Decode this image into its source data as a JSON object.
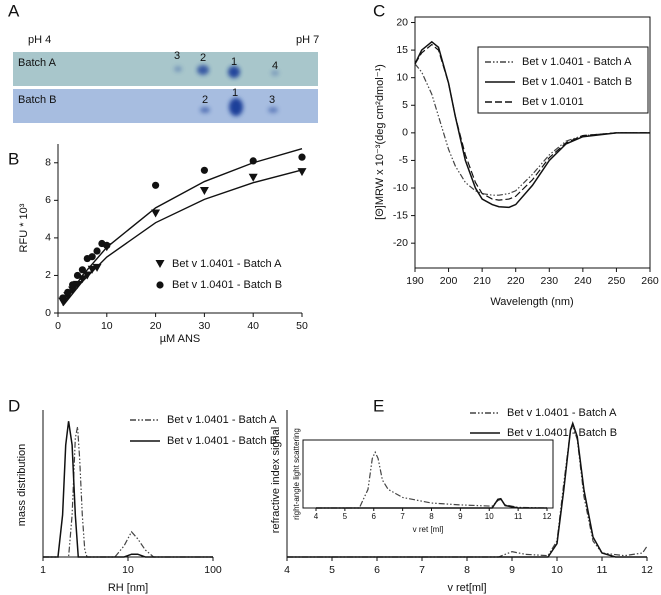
{
  "gel": {
    "panel": "A",
    "left_label": "pH 4",
    "right_label": "pH 7",
    "lanes": [
      {
        "name": "Batch A",
        "spots": [
          "3",
          "2",
          "1",
          "4"
        ]
      },
      {
        "name": "Batch B",
        "spots": [
          "2",
          "1",
          "3"
        ]
      }
    ]
  },
  "chart_data": [
    {
      "type": "scatter",
      "panel": "B",
      "xlabel": "µM ANS",
      "ylabel": "RFU * 10³",
      "xlim": [
        0,
        50
      ],
      "xticks": [
        0,
        10,
        20,
        30,
        40,
        50
      ],
      "ylim": [
        0,
        9
      ],
      "yticks": [
        0,
        2,
        4,
        6,
        8
      ],
      "legend": "lower right",
      "series": [
        {
          "name": "Bet v 1.0401 - Batch A",
          "marker": "triangle",
          "color": "#111",
          "x": [
            1,
            2,
            3,
            4,
            5,
            6,
            7,
            8,
            10,
            20,
            30,
            40,
            50
          ],
          "values": [
            0.6,
            0.9,
            1.2,
            1.5,
            1.8,
            2.0,
            2.3,
            2.4,
            3.5,
            5.3,
            6.5,
            7.2,
            7.5
          ]
        },
        {
          "name": "Bet v 1.0401 - Batch B",
          "marker": "circle",
          "color": "#111",
          "x": [
            1,
            2,
            3,
            4,
            5,
            6,
            7,
            8,
            9,
            10,
            20,
            30,
            40,
            50
          ],
          "values": [
            0.8,
            1.1,
            1.5,
            2.0,
            2.3,
            2.9,
            3.0,
            3.3,
            3.7,
            3.6,
            6.8,
            7.6,
            8.1,
            8.3
          ]
        }
      ],
      "fits": [
        {
          "color": "#111",
          "x": [
            1,
            5,
            10,
            20,
            30,
            40,
            50
          ],
          "values": [
            0.38,
            1.68,
            2.98,
            4.81,
            6.05,
            6.94,
            7.62
          ]
        },
        {
          "color": "#111",
          "x": [
            1,
            5,
            10,
            20,
            30,
            40,
            50
          ],
          "values": [
            0.45,
            2.0,
            3.5,
            5.6,
            7.0,
            8.0,
            8.75
          ]
        }
      ]
    },
    {
      "type": "line",
      "panel": "C",
      "xlabel": "Wavelength (nm)",
      "ylabel": "[Θ]MRW x 10⁻³(deg cm²dmol⁻¹)",
      "xlim": [
        190,
        260
      ],
      "xticks": [
        190,
        200,
        210,
        220,
        230,
        240,
        250,
        260
      ],
      "ylim": [
        -24.5,
        21
      ],
      "yticks": [
        -20,
        -15,
        -10,
        -5,
        0,
        5,
        10,
        15,
        20
      ],
      "legend": "upper right",
      "series": [
        {
          "name": "Bet v 1.0401 - Batch A",
          "dash": "dashdot",
          "color": "#444",
          "x": [
            190,
            192,
            195,
            197,
            200,
            202,
            205,
            208,
            210,
            213,
            215,
            218,
            220,
            225,
            230,
            235,
            240,
            250,
            260
          ],
          "values": [
            12.5,
            11,
            7,
            3,
            -3,
            -6,
            -9,
            -10.5,
            -11,
            -11.3,
            -11.3,
            -11,
            -10.5,
            -7.5,
            -4,
            -1.5,
            -0.5,
            0,
            0
          ]
        },
        {
          "name": "Bet v 1.0401 - Batch B",
          "dash": "solid",
          "color": "#111",
          "x": [
            190,
            192,
            195,
            197,
            200,
            202,
            205,
            208,
            210,
            213,
            215,
            218,
            220,
            225,
            230,
            235,
            240,
            250,
            260
          ],
          "values": [
            12.5,
            15,
            16.5,
            15.5,
            9,
            3,
            -5,
            -10,
            -12,
            -13,
            -13.4,
            -13.5,
            -13,
            -9.5,
            -5,
            -2,
            -0.7,
            0,
            0
          ]
        },
        {
          "name": "Bet v 1.0101",
          "dash": "dashed",
          "color": "#111",
          "x": [
            190,
            192,
            195,
            197,
            200,
            202,
            205,
            208,
            210,
            213,
            215,
            218,
            220,
            225,
            230,
            235,
            240,
            250,
            260
          ],
          "values": [
            12.5,
            14.5,
            16,
            15,
            9,
            3,
            -4,
            -9,
            -11,
            -12,
            -12.2,
            -12,
            -11.5,
            -8.5,
            -4.5,
            -1.8,
            -0.5,
            0,
            0
          ]
        }
      ]
    },
    {
      "type": "line",
      "panel": "D",
      "xlabel": "RH [nm]",
      "ylabel": "mass distribution",
      "xscale": "log",
      "xlim": [
        1,
        100
      ],
      "xticks": [
        1,
        10,
        100
      ],
      "ylim": [
        0,
        1.05
      ],
      "legend": "upper right",
      "series": [
        {
          "name": "Bet v 1.0401 - Batch A",
          "dash": "dashdot",
          "color": "#444",
          "x": [
            1,
            2.0,
            2.2,
            2.4,
            2.55,
            2.7,
            2.9,
            3.1,
            3.3,
            7,
            9,
            11,
            13,
            16,
            20,
            100
          ],
          "values": [
            0,
            0,
            0.3,
            0.85,
            0.93,
            0.7,
            0.3,
            0.05,
            0,
            0,
            0.08,
            0.18,
            0.13,
            0.05,
            0,
            0
          ]
        },
        {
          "name": "Bet v 1.0401 - Batch B",
          "dash": "solid",
          "color": "#111",
          "x": [
            1,
            1.5,
            1.7,
            1.85,
            2.0,
            2.2,
            2.4,
            2.6,
            9,
            11,
            13,
            16,
            100
          ],
          "values": [
            0,
            0,
            0.3,
            0.8,
            0.97,
            0.8,
            0.3,
            0,
            0,
            0.02,
            0.02,
            0,
            0
          ]
        }
      ]
    },
    {
      "type": "line",
      "panel": "E",
      "xlabel": "v ret[ml]",
      "ylabel": "refractive index signal",
      "xlim": [
        4,
        12
      ],
      "xticks": [
        4,
        5,
        6,
        7,
        8,
        9,
        10,
        11,
        12
      ],
      "ylim": [
        0,
        1.1
      ],
      "legend": "upper right",
      "series": [
        {
          "name": "Bet v 1.0401 - Batch A",
          "dash": "dashdot",
          "color": "#444",
          "x": [
            4,
            8.7,
            9.0,
            9.3,
            9.8,
            10.0,
            10.15,
            10.3,
            10.35,
            10.45,
            10.6,
            10.8,
            11,
            11.5,
            11.9,
            12
          ],
          "values": [
            0,
            0,
            0.04,
            0.02,
            0.01,
            0.12,
            0.55,
            0.95,
            0.98,
            0.88,
            0.45,
            0.12,
            0.03,
            0.01,
            0.03,
            0.08
          ]
        },
        {
          "name": "Bet v 1.0401 - Batch B",
          "dash": "solid",
          "color": "#111",
          "x": [
            4,
            9.8,
            10.0,
            10.15,
            10.3,
            10.35,
            10.45,
            10.6,
            10.8,
            11,
            11.3,
            12
          ],
          "values": [
            0,
            0,
            0.1,
            0.5,
            0.95,
            1.0,
            0.9,
            0.5,
            0.15,
            0.03,
            0,
            0
          ]
        }
      ]
    },
    {
      "type": "line",
      "xlabel": "v ret [ml]",
      "ylabel": "right-angle light scattering",
      "xlim": [
        4,
        12
      ],
      "xticks": [
        4,
        5,
        6,
        7,
        8,
        9,
        10,
        11,
        12
      ],
      "ylim": [
        0,
        1
      ],
      "series": [
        {
          "dash": "dashdot",
          "color": "#444",
          "x": [
            4,
            5.5,
            5.8,
            5.95,
            6.05,
            6.15,
            6.3,
            6.5,
            7,
            8,
            9,
            10.1,
            10.3,
            10.4,
            10.55,
            11,
            12
          ],
          "values": [
            0,
            0,
            0.3,
            0.8,
            0.9,
            0.8,
            0.45,
            0.3,
            0.17,
            0.08,
            0.05,
            0.03,
            0.12,
            0.14,
            0.05,
            0.01,
            0
          ]
        },
        {
          "dash": "solid",
          "color": "#111",
          "x": [
            4,
            10.1,
            10.3,
            10.4,
            10.55,
            11,
            12
          ],
          "values": [
            0,
            0,
            0.14,
            0.15,
            0.04,
            0,
            0
          ]
        }
      ]
    }
  ]
}
